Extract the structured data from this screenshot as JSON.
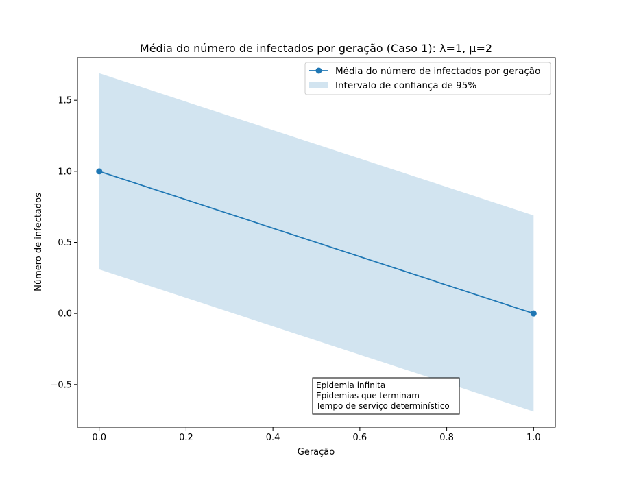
{
  "chart_data": {
    "type": "line",
    "title": "Média do número de infectados por geração (Caso 1): λ=1, μ=2",
    "xlabel": "Geração",
    "ylabel": "Número de infectados",
    "xlim": [
      -0.05,
      1.05
    ],
    "ylim": [
      -0.8,
      1.8
    ],
    "x": [
      0,
      1
    ],
    "series": [
      {
        "name": "Média do número de infectados por geração",
        "values": [
          1.0,
          0.0
        ],
        "color": "#1f77b4",
        "marker": "circle"
      }
    ],
    "confidence_band": {
      "name": "Intervalo de confiança de 95%",
      "lower": [
        0.31,
        -0.69
      ],
      "upper": [
        1.69,
        0.69
      ],
      "color": "#1f77b4",
      "opacity": 0.2
    },
    "x_ticks": [
      {
        "value": 0.0,
        "label": "0.0"
      },
      {
        "value": 0.2,
        "label": "0.2"
      },
      {
        "value": 0.4,
        "label": "0.4"
      },
      {
        "value": 0.6,
        "label": "0.6"
      },
      {
        "value": 0.8,
        "label": "0.8"
      },
      {
        "value": 1.0,
        "label": "1.0"
      }
    ],
    "y_ticks": [
      {
        "value": -0.5,
        "label": "−0.5"
      },
      {
        "value": 0.0,
        "label": "0.0"
      },
      {
        "value": 0.5,
        "label": "0.5"
      },
      {
        "value": 1.0,
        "label": "1.0"
      },
      {
        "value": 1.5,
        "label": "1.5"
      }
    ],
    "legend": {
      "placement": "top-right"
    },
    "annotation_box": {
      "lines": [
        "Epidemia infinita",
        "Epidemias que terminam",
        "Tempo de serviço determinístico"
      ]
    },
    "grid": false
  }
}
